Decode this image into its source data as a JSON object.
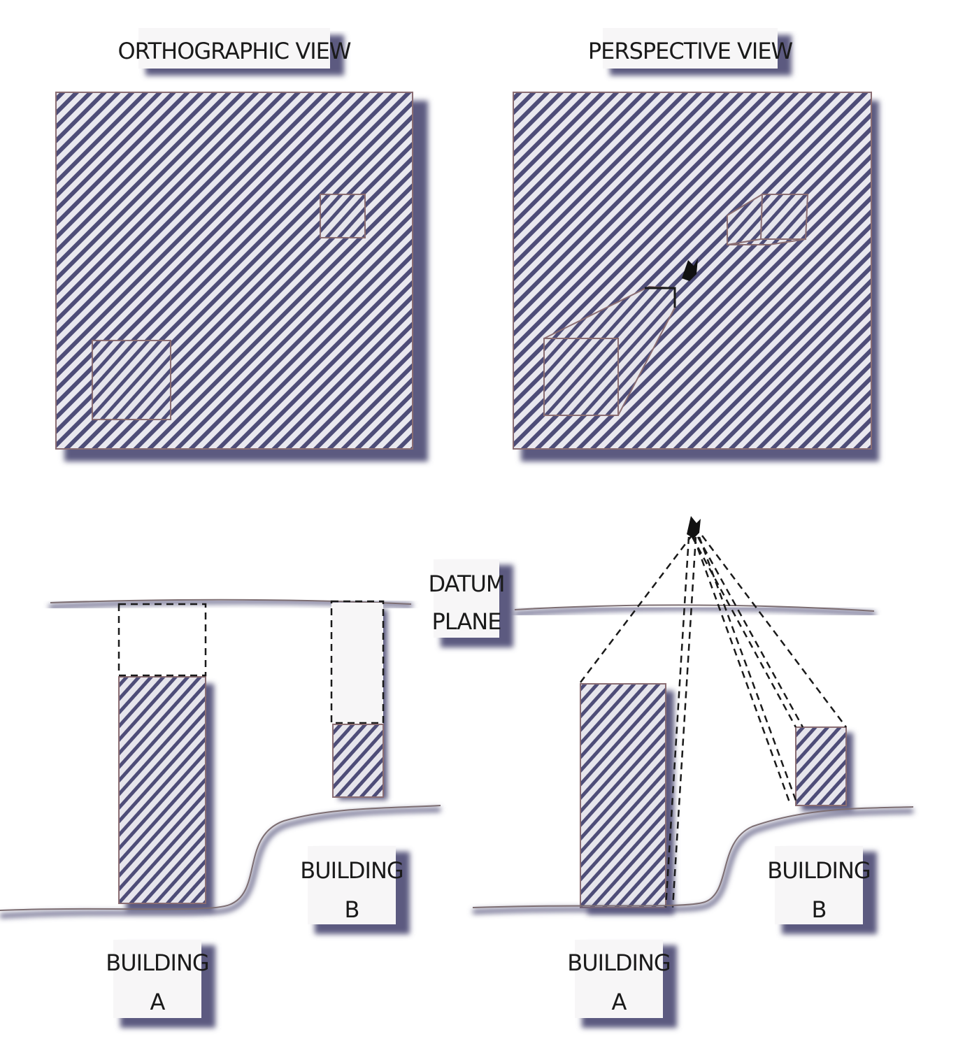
{
  "panels": {
    "orthographic_title": "ORTHOGRAPHIC VIEW",
    "perspective_title": "PERSPECTIVE VIEW"
  },
  "labels": {
    "datum_line1": "DATUM",
    "datum_line2": "PLANE",
    "building_word": "BUILDING",
    "building_a_letter": "A",
    "building_b_letter": "B"
  },
  "colors": {
    "hatch": "#4e4d78",
    "outline": "#8a6d72",
    "shadow": "#5c5a80",
    "ink": "#1a1a1a"
  }
}
